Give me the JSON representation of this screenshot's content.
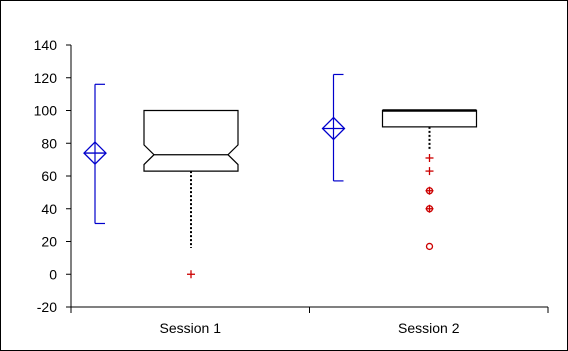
{
  "chart_data": {
    "type": "box",
    "title": "",
    "xlabel": "",
    "ylabel": "",
    "ylim": [
      -20,
      140
    ],
    "yticks": [
      140,
      120,
      100,
      80,
      60,
      40,
      20,
      0,
      -20
    ],
    "categories": [
      "Session 1",
      "Session 2"
    ],
    "mean_sd": [
      {
        "category": "Session 1",
        "mean": 74,
        "upper": 116,
        "lower": 31
      },
      {
        "category": "Session 2",
        "mean": 89,
        "upper": 122,
        "lower": 57
      }
    ],
    "boxes": [
      {
        "category": "Session 1",
        "q1": 63,
        "median": 73,
        "q3": 100,
        "notch_low": 67,
        "notch_high": 79,
        "whisker_low": 16,
        "whisker_high": 100,
        "outliers": [
          {
            "value": 0,
            "marker": "plus"
          }
        ]
      },
      {
        "category": "Session 2",
        "q1": 90,
        "median": 100,
        "q3": 100,
        "whisker_low": 76,
        "whisker_high": 100,
        "outliers": [
          {
            "value": 71,
            "marker": "plus"
          },
          {
            "value": 63,
            "marker": "plus"
          },
          {
            "value": 51,
            "marker": "circle"
          },
          {
            "value": 51,
            "marker": "plus"
          },
          {
            "value": 40,
            "marker": "circle"
          },
          {
            "value": 40,
            "marker": "plus"
          },
          {
            "value": 17,
            "marker": "circle"
          }
        ]
      }
    ],
    "colors": {
      "mean_marker": "#0000cc",
      "box": "#000000",
      "whisker": "#000000",
      "outlier": "#cc0000",
      "axis": "#000000"
    }
  }
}
